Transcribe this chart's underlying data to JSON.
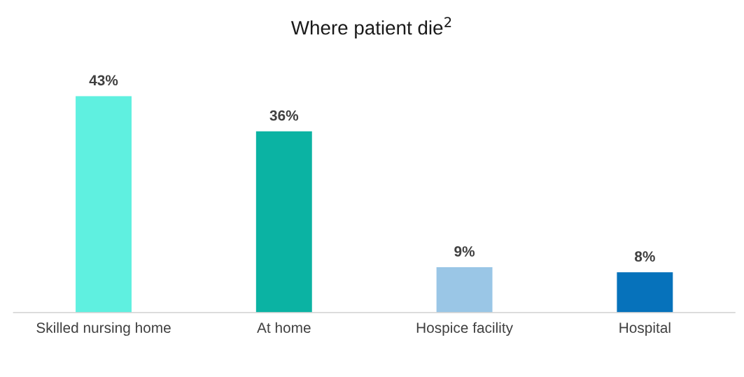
{
  "chart_data": {
    "type": "bar",
    "title": "Where patient die$^{2}$",
    "categories": [
      "Skilled nursing home",
      "At home",
      "Hospice facility",
      "Hospital"
    ],
    "values": [
      43,
      36,
      9,
      8
    ],
    "colors": [
      "#5ff0e0",
      "#0bb3a3",
      "#9ac6e6",
      "#0672bb"
    ],
    "value_labels": [
      "43%",
      "36%",
      "9%",
      "8%"
    ],
    "tick_labels": "x"
  }
}
